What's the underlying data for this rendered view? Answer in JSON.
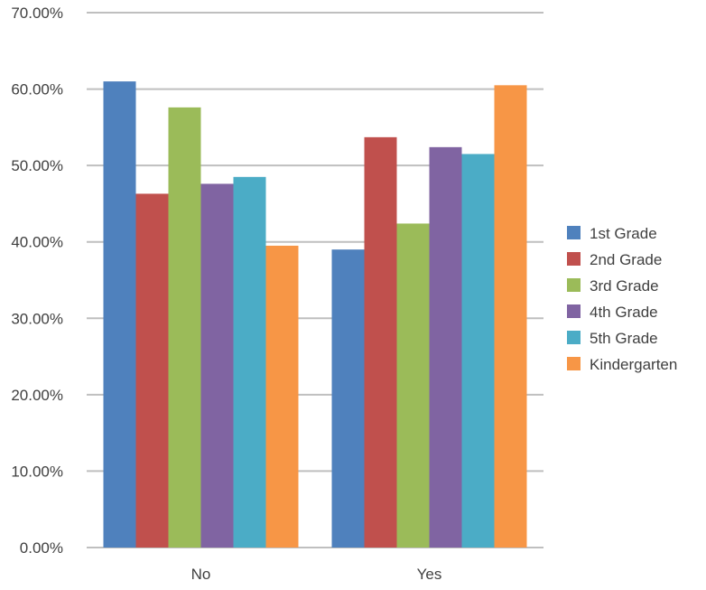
{
  "chart_data": {
    "type": "bar",
    "categories": [
      "No",
      "Yes"
    ],
    "series": [
      {
        "name": "1st Grade",
        "values": [
          61.0,
          39.0
        ],
        "color": "#4f81bd"
      },
      {
        "name": "2nd Grade",
        "values": [
          46.3,
          53.7
        ],
        "color": "#c0504d"
      },
      {
        "name": "3rd Grade",
        "values": [
          57.6,
          42.4
        ],
        "color": "#9bbb59"
      },
      {
        "name": "4th Grade",
        "values": [
          47.6,
          52.4
        ],
        "color": "#8064a2"
      },
      {
        "name": "5th Grade",
        "values": [
          48.5,
          51.5
        ],
        "color": "#4bacc6"
      },
      {
        "name": "Kindergarten",
        "values": [
          39.5,
          60.5
        ],
        "color": "#f79646"
      }
    ],
    "y_ticks": [
      "0.00%",
      "10.00%",
      "20.00%",
      "30.00%",
      "40.00%",
      "50.00%",
      "60.00%",
      "70.00%"
    ],
    "ylim": [
      0,
      70
    ],
    "y_format": "percent",
    "grid": true,
    "legend_position": "right",
    "title": "",
    "xlabel": "",
    "ylabel": ""
  }
}
